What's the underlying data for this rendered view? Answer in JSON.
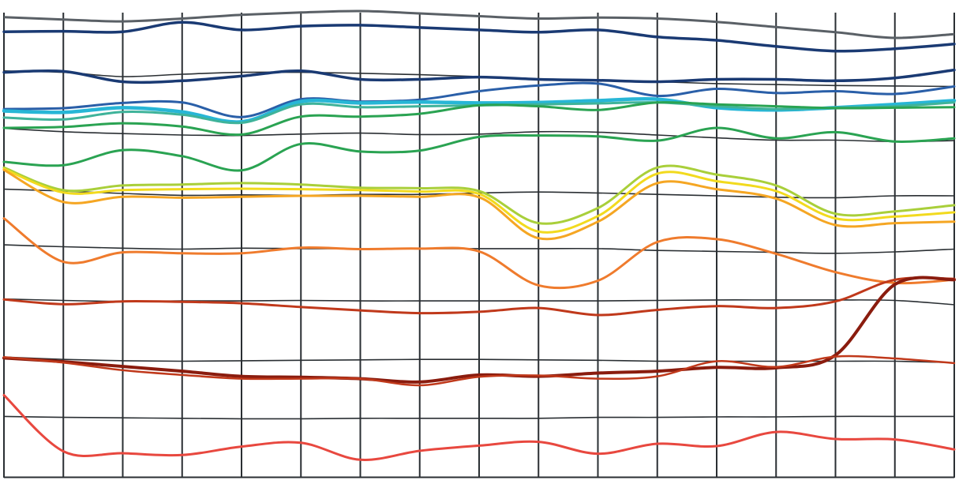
{
  "chart_data": {
    "type": "line",
    "title": "",
    "xlabel": "",
    "ylabel": "",
    "grid": true,
    "legend": "none",
    "x": [
      0,
      1,
      2,
      3,
      4,
      5,
      6,
      7,
      8,
      9,
      10,
      11,
      12,
      13,
      14,
      15,
      16
    ],
    "xlim": [
      0,
      16
    ],
    "ylim": [
      0,
      100
    ],
    "grid_columns": 16,
    "grid_rows": [
      {
        "color": "#5a6066",
        "values": [
          97.7,
          97.2,
          96.8,
          97.4,
          98.2,
          98.7,
          99.0,
          98.5,
          97.9,
          97.4,
          97.6,
          97.4,
          96.7,
          95.6,
          94.5,
          93.3,
          94.1
        ]
      },
      {
        "color": "#2a2f33",
        "values": [
          86.3,
          86.0,
          85.1,
          85.6,
          86.0,
          86.0,
          85.8,
          85.5,
          85.1,
          84.5,
          84.2,
          84.0,
          83.6,
          83.4,
          83.2,
          83.1,
          83.0
        ]
      },
      {
        "color": "#2a2f33",
        "values": [
          74.1,
          73.4,
          73.0,
          72.7,
          72.6,
          72.9,
          73.1,
          72.8,
          72.9,
          73.4,
          73.3,
          72.7,
          72.1,
          71.6,
          71.6,
          71.3,
          71.5
        ]
      },
      {
        "color": "#2a2f33",
        "values": [
          61.2,
          60.8,
          60.3,
          59.9,
          60.0,
          59.9,
          60.1,
          60.1,
          60.4,
          60.6,
          60.4,
          60.1,
          59.8,
          59.5,
          59.4,
          59.8,
          59.8
        ]
      },
      {
        "color": "#2a2f33",
        "values": [
          49.4,
          49.0,
          48.7,
          48.5,
          48.7,
          48.6,
          48.6,
          48.6,
          48.6,
          48.6,
          48.6,
          48.2,
          48.0,
          47.8,
          47.6,
          47.9,
          48.5
        ]
      },
      {
        "color": "#2a2f33",
        "values": [
          37.9,
          37.6,
          37.4,
          37.5,
          37.5,
          37.6,
          37.5,
          37.5,
          37.5,
          37.5,
          37.5,
          37.6,
          37.7,
          37.7,
          37.7,
          37.6,
          36.7
        ]
      },
      {
        "color": "#2a2f33",
        "values": [
          25.6,
          25.1,
          24.8,
          24.7,
          24.8,
          24.9,
          25.0,
          25.1,
          25.1,
          25.0,
          24.9,
          24.7,
          24.7,
          24.7,
          24.7,
          24.7,
          24.4
        ]
      },
      {
        "color": "#2a2f33",
        "values": [
          13.0,
          12.8,
          12.7,
          12.6,
          12.5,
          12.5,
          12.6,
          12.6,
          12.6,
          12.6,
          12.8,
          12.8,
          12.9,
          12.9,
          13.0,
          13.0,
          13.0
        ]
      }
    ],
    "series": [
      {
        "color": "#1a3a73",
        "width": 3.5,
        "values": [
          94.6,
          94.7,
          94.6,
          96.6,
          95.0,
          95.8,
          96.0,
          95.5,
          95.0,
          94.5,
          95.0,
          93.5,
          92.8,
          91.5,
          90.5,
          91.0,
          92.0
        ]
      },
      {
        "color": "#1a3a73",
        "width": 3.5,
        "values": [
          86.0,
          86.2,
          84.0,
          84.2,
          85.2,
          86.3,
          84.5,
          84.5,
          85.0,
          84.5,
          84.3,
          84.0,
          84.5,
          84.5,
          84.2,
          84.8,
          86.5
        ]
      },
      {
        "color": "#2a5fa8",
        "width": 3,
        "values": [
          78.2,
          78.4,
          79.5,
          79.6,
          76.5,
          80.3,
          79.8,
          80.2,
          82.0,
          83.2,
          83.6,
          81.0,
          82.5,
          81.6,
          82.0,
          81.4,
          83.0
        ]
      },
      {
        "color": "#27b6d6",
        "width": 4.5,
        "values": [
          77.8,
          77.5,
          78.5,
          77.6,
          75.5,
          79.8,
          79.5,
          79.7,
          79.5,
          79.6,
          80.0,
          80.3,
          78.5,
          78.0,
          78.5,
          79.2,
          80.0
        ]
      },
      {
        "color": "#3fb39a",
        "width": 3,
        "values": [
          76.4,
          76.0,
          77.6,
          77.0,
          75.3,
          79.2,
          78.6,
          78.8,
          79.0,
          79.2,
          79.4,
          79.6,
          78.8,
          78.2,
          78.5,
          78.8,
          79.6
        ]
      },
      {
        "color": "#2aa352",
        "width": 3,
        "values": [
          74.2,
          74.4,
          75.2,
          74.5,
          72.8,
          76.6,
          76.6,
          77.2,
          79.0,
          78.8,
          78.0,
          79.6,
          79.2,
          78.8,
          78.4,
          78.5,
          78.6
        ]
      },
      {
        "color": "#2aa352",
        "width": 3,
        "values": [
          67.0,
          66.3,
          69.5,
          68.2,
          65.2,
          70.8,
          69.2,
          69.4,
          72.3,
          72.6,
          72.4,
          71.5,
          74.2,
          72.0,
          73.3,
          71.3,
          72.0
        ]
      },
      {
        "color": "#a9cf3a",
        "width": 3,
        "values": [
          65.8,
          61.0,
          62.0,
          62.2,
          62.5,
          62.2,
          61.5,
          61.4,
          60.8,
          54.0,
          57.2,
          65.8,
          64.3,
          62.0,
          56.0,
          56.5,
          57.8
        ]
      },
      {
        "color": "#f2da1e",
        "width": 3,
        "values": [
          65.5,
          60.5,
          61.0,
          61.2,
          61.3,
          61.2,
          61.0,
          60.7,
          60.2,
          52.2,
          55.5,
          64.5,
          62.9,
          60.8,
          55.0,
          55.4,
          56.3
        ]
      },
      {
        "color": "#f5a623",
        "width": 3,
        "values": [
          65.3,
          58.5,
          59.6,
          59.4,
          59.6,
          59.8,
          59.8,
          59.6,
          59.5,
          50.8,
          54.3,
          62.5,
          61.2,
          59.2,
          53.6,
          54.0,
          54.3
        ]
      },
      {
        "color": "#ef7b2d",
        "width": 3,
        "values": [
          55.0,
          45.8,
          47.8,
          47.6,
          47.6,
          48.8,
          48.5,
          48.6,
          48.0,
          40.8,
          41.8,
          50.0,
          50.6,
          47.5,
          43.6,
          41.3,
          42.0
        ]
      },
      {
        "color": "#c0391b",
        "width": 3,
        "values": [
          37.8,
          36.8,
          37.4,
          37.3,
          37.0,
          36.2,
          35.5,
          34.9,
          35.2,
          36.0,
          34.5,
          35.6,
          36.4,
          36.0,
          37.4,
          42.0,
          42.2
        ]
      },
      {
        "color": "#8a1c0e",
        "width": 4,
        "values": [
          25.4,
          24.6,
          23.6,
          22.6,
          21.5,
          21.3,
          21.0,
          20.3,
          21.8,
          21.5,
          22.2,
          22.6,
          23.4,
          23.3,
          26.0,
          41.0,
          42.0
        ]
      },
      {
        "color": "#c0391b",
        "width": 2.5,
        "values": [
          25.6,
          24.4,
          22.8,
          21.8,
          21.0,
          21.0,
          21.0,
          19.6,
          21.4,
          21.7,
          21.0,
          21.5,
          24.7,
          23.5,
          25.7,
          25.3,
          24.3
        ]
      },
      {
        "color": "#e8483f",
        "width": 3,
        "values": [
          17.5,
          5.6,
          5.2,
          4.8,
          6.6,
          7.4,
          3.8,
          5.7,
          6.8,
          7.6,
          5.1,
          7.2,
          6.7,
          9.7,
          8.2,
          8.1,
          6.0
        ]
      }
    ]
  }
}
